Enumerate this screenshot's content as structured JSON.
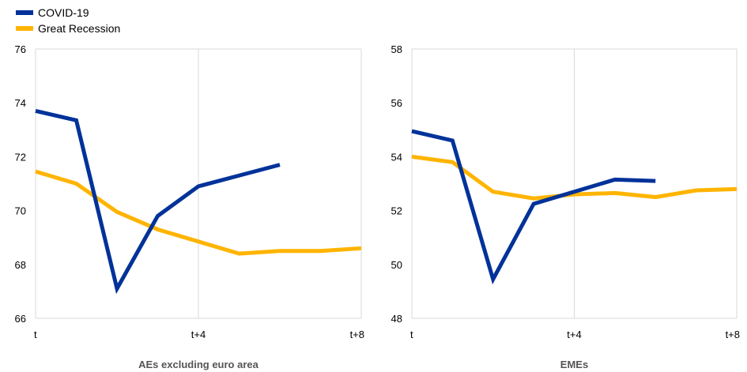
{
  "legend": [
    {
      "name": "COVID-19",
      "color": "#003299"
    },
    {
      "name": "Great Recession",
      "color": "#FFB400"
    }
  ],
  "chart_data": [
    {
      "type": "line",
      "title": "AEs excluding euro area",
      "x_ticks": [
        "t",
        "t+4",
        "t+8"
      ],
      "y_ticks": [
        66,
        68,
        70,
        72,
        74,
        76
      ],
      "ylim": [
        66,
        76
      ],
      "x": [
        0,
        1,
        2,
        3,
        4,
        5,
        6,
        7,
        8
      ],
      "grid": "vertical",
      "series": [
        {
          "name": "COVID-19",
          "color": "#003299",
          "values": [
            73.7,
            73.35,
            67.1,
            69.8,
            70.9,
            71.3,
            71.7,
            null,
            null
          ]
        },
        {
          "name": "Great Recession",
          "color": "#FFB400",
          "values": [
            71.45,
            71.0,
            69.95,
            69.3,
            68.85,
            68.4,
            68.5,
            68.5,
            68.6
          ]
        }
      ]
    },
    {
      "type": "line",
      "title": "EMEs",
      "x_ticks": [
        "t",
        "t+4",
        "t+8"
      ],
      "y_ticks": [
        48,
        50,
        52,
        54,
        56,
        58
      ],
      "ylim": [
        48,
        58
      ],
      "x": [
        0,
        1,
        2,
        3,
        4,
        5,
        6,
        7,
        8
      ],
      "grid": "vertical",
      "series": [
        {
          "name": "COVID-19",
          "color": "#003299",
          "values": [
            54.95,
            54.6,
            49.45,
            52.25,
            52.7,
            53.15,
            53.1,
            null,
            null
          ]
        },
        {
          "name": "Great Recession",
          "color": "#FFB400",
          "values": [
            54.0,
            53.8,
            52.7,
            52.45,
            52.6,
            52.65,
            52.5,
            52.75,
            52.8
          ]
        }
      ]
    }
  ]
}
